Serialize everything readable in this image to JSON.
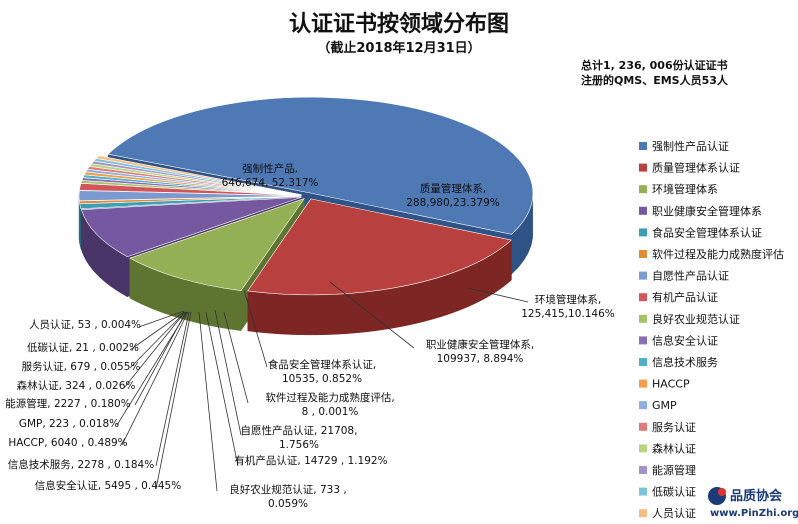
{
  "title": "认证证书按领域分布图",
  "subtitle": "（截止2018年12月31日）",
  "summary": {
    "line1": "总计1, 236, 006份认证证书",
    "line2": "注册的QMS、EMS人员53人"
  },
  "watermark": {
    "name": "品质协会",
    "url": "www.PinZhi.org"
  },
  "chart_data": {
    "type": "pie",
    "style": "3d-exploded",
    "legend_position": "right",
    "total": 1236006,
    "slices": [
      {
        "name": "强制性产品认证",
        "value": 646674,
        "percent": "52.317%",
        "label": [
          "强制性产品,",
          "646,674, 52.317%"
        ],
        "color": "#4e79b5",
        "dark": "#2f5386"
      },
      {
        "name": "质量管理体系认证",
        "value": 288980,
        "percent": "23.379%",
        "label": [
          "质量管理体系,",
          "288,980,23.379%"
        ],
        "color": "#b8403e",
        "dark": "#7d2624"
      },
      {
        "name": "环境管理体系",
        "value": 125415,
        "percent": "10.146%",
        "label": [
          "环境管理体系,",
          "125,415,10.146%"
        ],
        "color": "#93b054",
        "dark": "#5e7531"
      },
      {
        "name": "职业健康安全管理体系",
        "value": 109937,
        "percent": "8.894%",
        "label": [
          "职业健康安全管理体系,",
          "109937, 8.894%"
        ],
        "color": "#7558a0",
        "dark": "#4a3568"
      },
      {
        "name": "食品安全管理体系认证",
        "value": 10535,
        "percent": "0.852%",
        "label": [
          "食品安全管理体系认证,",
          "10535, 0.852%"
        ],
        "color": "#3c9fb5",
        "dark": "#236877"
      },
      {
        "name": "软件过程及能力成熟度评估",
        "value": 8,
        "percent": "0.001%",
        "label": [
          "软件过程及能力成熟度评估,",
          "8 , 0.001%"
        ],
        "color": "#e08b35",
        "dark": "#9a5a1c"
      },
      {
        "name": "自愿性产品认证",
        "value": 21708,
        "percent": "1.756%",
        "label": [
          "自愿性产品认证, 21708,",
          "1.756%"
        ],
        "color": "#7b9bd0",
        "dark": "#4c6ca0"
      },
      {
        "name": "有机产品认证",
        "value": 14729,
        "percent": "1.192%",
        "label": [
          "有机产品认证, 14729 , 1.192%"
        ],
        "color": "#d2555a",
        "dark": "#8e3034"
      },
      {
        "name": "良好农业规范认证",
        "value": 733,
        "percent": "0.059%",
        "label": [
          "良好农业规范认证, 733 ,",
          "0.059%"
        ],
        "color": "#a5c46a",
        "dark": "#6d8840"
      },
      {
        "name": "信息安全认证",
        "value": 5495,
        "percent": "0.445%",
        "label": [
          "信息安全认证, 5495 , 0.445%"
        ],
        "color": "#8a6fb4",
        "dark": "#5a4580"
      },
      {
        "name": "信息技术服务",
        "value": 2278,
        "percent": "0.184%",
        "label": [
          "信息技术服务, 2278 , 0.184%"
        ],
        "color": "#4fb0c6",
        "dark": "#2e7788"
      },
      {
        "name": "HACCP",
        "value": 6040,
        "percent": "0.489%",
        "label": [
          "HACCP, 6040 , 0.489%"
        ],
        "color": "#f29e4c",
        "dark": "#b0692b"
      },
      {
        "name": "GMP",
        "value": 223,
        "percent": "0.018%",
        "label": [
          "GMP, 223 , 0.018%"
        ],
        "color": "#8fb0df",
        "dark": "#5f80ae"
      },
      {
        "name": "服务认证",
        "value": 679,
        "percent": "0.055%",
        "label": [
          "服务认证, 679 , 0.055%"
        ],
        "color": "#e07b7b",
        "dark": "#a04c4c"
      },
      {
        "name": "森林认证",
        "value": 324,
        "percent": "0.026%",
        "label": [
          "森林认证, 324 , 0.026%"
        ],
        "color": "#b9d57f",
        "dark": "#7f9a50"
      },
      {
        "name": "能源管理",
        "value": 2227,
        "percent": "0.180%",
        "label": [
          "能源管理, 2227 , 0.180%"
        ],
        "color": "#a592c8",
        "dark": "#6e5f92"
      },
      {
        "name": "低碳认证",
        "value": 21,
        "percent": "0.002%",
        "label": [
          "低碳认证, 21 , 0.002%"
        ],
        "color": "#7fc3d8",
        "dark": "#4e8ea2"
      },
      {
        "name": "人员认证",
        "value": 53,
        "percent": "0.004%",
        "label": [
          "人员认证, 53 , 0.004%"
        ],
        "color": "#f7bd85",
        "dark": "#bb8552"
      }
    ]
  }
}
